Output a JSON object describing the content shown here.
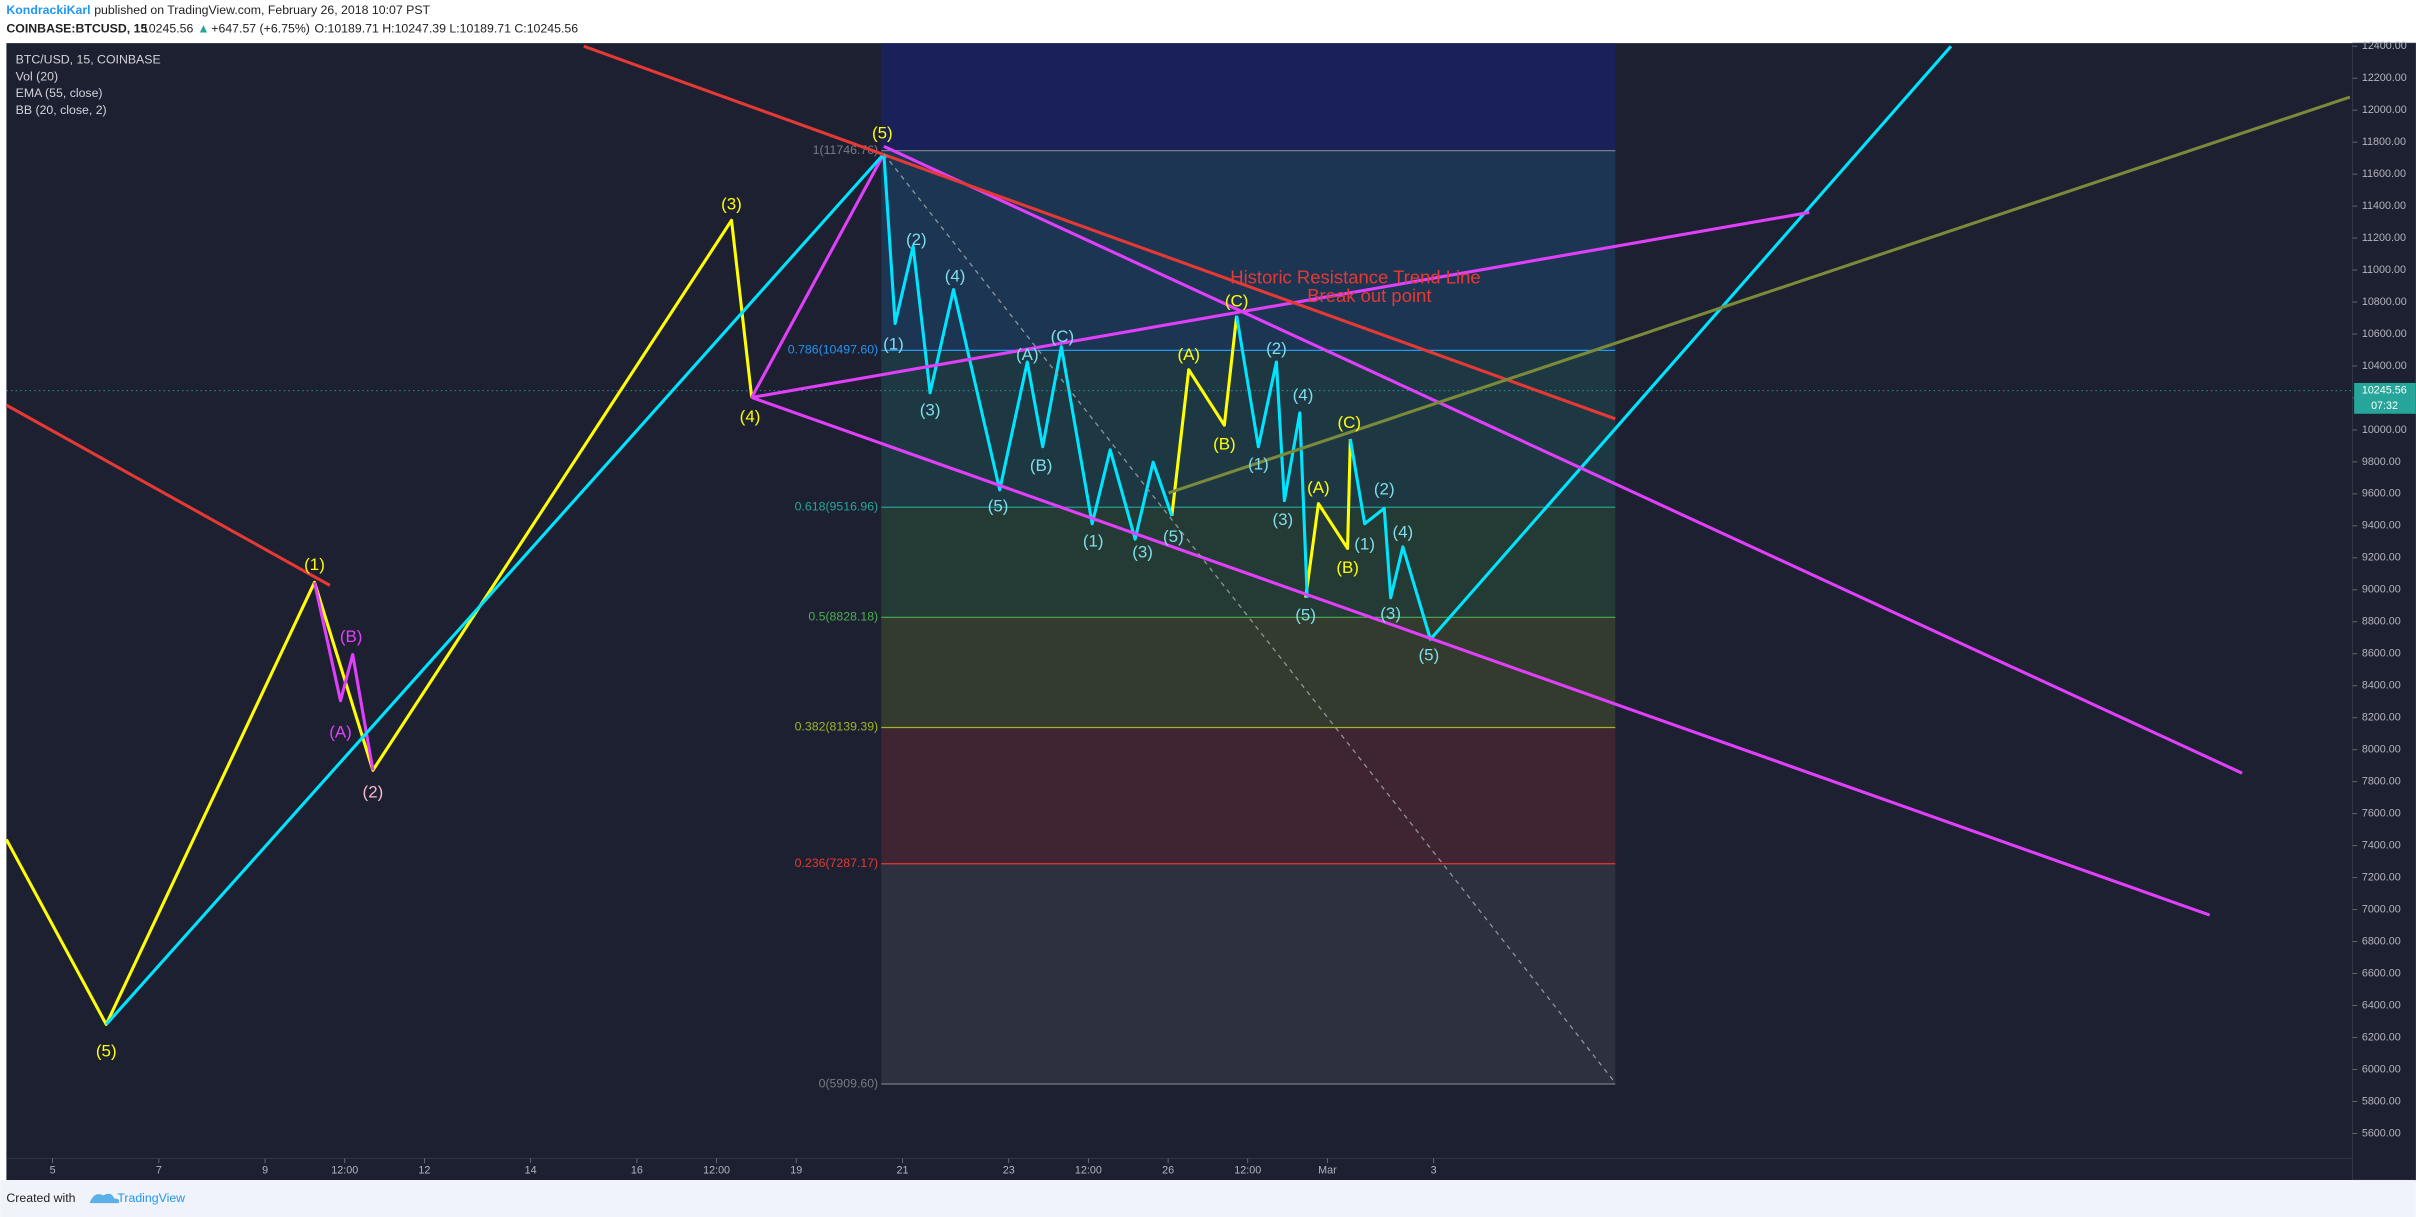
{
  "header": {
    "author": "KondrackiKarl",
    "published": "published on TradingView.com, February 26, 2018 10:07 PST",
    "symbol": "COINBASE:BTCUSD, 15",
    "price": "10245.56",
    "arrow": "▲",
    "change": "+647.57 (+6.75%)",
    "ohlc": "O:10189.71 H:10247.39 L:10189.71 C:10245.56"
  },
  "legend": [
    "BTC/USD, 15, COINBASE",
    "Vol (20)",
    "EMA (55, close)",
    "BB (20, close, 2)"
  ],
  "footer": {
    "created": "Created with",
    "brand": "TradingView"
  },
  "chart_data": {
    "type": "line",
    "xlim": [
      -0.87,
      43.3
    ],
    "ylim": [
      5444,
      12419
    ],
    "xticks": [
      {
        "value": 0,
        "label": "5"
      },
      {
        "value": 2,
        "label": "7"
      },
      {
        "value": 4,
        "label": "9"
      },
      {
        "value": 5.5,
        "label": "12:00"
      },
      {
        "value": 7,
        "label": "12"
      },
      {
        "value": 9,
        "label": "14"
      },
      {
        "value": 11,
        "label": "16"
      },
      {
        "value": 12.5,
        "label": "12:00"
      },
      {
        "value": 14,
        "label": "19"
      },
      {
        "value": 16,
        "label": "21"
      },
      {
        "value": 18,
        "label": "23"
      },
      {
        "value": 19.5,
        "label": "12:00"
      },
      {
        "value": 21,
        "label": "26"
      },
      {
        "value": 22.5,
        "label": "12:00"
      },
      {
        "value": 24,
        "label": "Mar"
      },
      {
        "value": 26,
        "label": "3"
      }
    ],
    "yticks": [
      {
        "value": 5600,
        "label": "5600.00"
      },
      {
        "value": 5800,
        "label": "5800.00"
      },
      {
        "value": 6000,
        "label": "6000.00"
      },
      {
        "value": 6200,
        "label": "6200.00"
      },
      {
        "value": 6400,
        "label": "6400.00"
      },
      {
        "value": 6600,
        "label": "6600.00"
      },
      {
        "value": 6800,
        "label": "6800.00"
      },
      {
        "value": 7000,
        "label": "7000.00"
      },
      {
        "value": 7200,
        "label": "7200.00"
      },
      {
        "value": 7400,
        "label": "7400.00"
      },
      {
        "value": 7600,
        "label": "7600.00"
      },
      {
        "value": 7800,
        "label": "7800.00"
      },
      {
        "value": 8000,
        "label": "8000.00"
      },
      {
        "value": 8200,
        "label": "8200.00"
      },
      {
        "value": 8400,
        "label": "8400.00"
      },
      {
        "value": 8600,
        "label": "8600.00"
      },
      {
        "value": 8800,
        "label": "8800.00"
      },
      {
        "value": 9000,
        "label": "9000.00"
      },
      {
        "value": 9200,
        "label": "9200.00"
      },
      {
        "value": 9400,
        "label": "9400.00"
      },
      {
        "value": 9600,
        "label": "9600.00"
      },
      {
        "value": 9800,
        "label": "9800.00"
      },
      {
        "value": 10000,
        "label": "10000.00"
      },
      {
        "value": 10200,
        "label": "10200.00"
      },
      {
        "value": 10400,
        "label": "10400.00"
      },
      {
        "value": 10600,
        "label": "10600.00"
      },
      {
        "value": 10800,
        "label": "10800.00"
      },
      {
        "value": 11000,
        "label": "11000.00"
      },
      {
        "value": 11200,
        "label": "11200.00"
      },
      {
        "value": 11400,
        "label": "11400.00"
      },
      {
        "value": 11600,
        "label": "11600.00"
      },
      {
        "value": 11800,
        "label": "11800.00"
      },
      {
        "value": 12000,
        "label": "12000.00"
      },
      {
        "value": 12200,
        "label": "12200.00"
      },
      {
        "value": 12400,
        "label": "12400.00"
      }
    ],
    "last_price": {
      "value": 10245.56,
      "label": "10245.56",
      "countdown": "07:32",
      "color": "#26a69a"
    },
    "fib": {
      "x": [
        15.6,
        29.42
      ],
      "top_color": "#1a237e",
      "levels": [
        {
          "price": 11746.76,
          "label": "1(11746.76)",
          "color": "#787b86"
        },
        {
          "price": 10497.6,
          "label": "0.786(10497.60)",
          "color": "#2196f3"
        },
        {
          "price": 9516.96,
          "label": "0.618(9516.96)",
          "color": "#26a69a"
        },
        {
          "price": 8828.18,
          "label": "0.5(8828.18)",
          "color": "#4caf50"
        },
        {
          "price": 8139.39,
          "label": "0.382(8139.39)",
          "color": "#9cb624"
        },
        {
          "price": 7287.17,
          "label": "0.236(7287.17)",
          "color": "#e53935"
        },
        {
          "price": 5909.6,
          "label": "0(5909.60)",
          "color": "#787b86"
        }
      ]
    },
    "series": [
      {
        "color": "#ffff00",
        "x": [
          -0.87,
          1.01,
          4.93,
          6.03,
          12.78,
          13.16
        ],
        "values": [
          7439,
          6282,
          9047,
          7872,
          11311,
          10203
        ]
      },
      {
        "color": "#ffff00",
        "x": [
          21.07,
          21.39,
          22.06,
          22.29,
          null,
          23.59,
          23.83,
          24.38,
          24.43
        ],
        "values": [
          9462,
          10377,
          10030,
          10714,
          null,
          8951,
          9539,
          9259,
          9943
        ]
      },
      {
        "color": "#e040fb",
        "x": [
          4.93,
          5.42,
          5.65,
          6.03,
          null,
          13.16,
          15.65
        ],
        "values": [
          9047,
          8306,
          8595,
          7872,
          null,
          10203,
          11726
        ]
      },
      {
        "color": "#00e5ff",
        "x": [
          1.01,
          15.65
        ],
        "values": [
          6282,
          11726
        ]
      },
      {
        "color": "#00e5ff",
        "x": [
          15.65,
          15.86,
          16.2,
          16.52,
          16.96,
          17.83,
          18.35,
          18.64,
          18.99,
          19.57,
          19.91,
          20.38,
          20.72,
          21.07
        ],
        "values": [
          11726,
          10666,
          11148,
          10232,
          10878,
          9625,
          10425,
          9895,
          10521,
          9413,
          9876,
          9317,
          9799,
          9462
        ]
      },
      {
        "color": "#00e5ff",
        "x": [
          22.29,
          22.7,
          23.04,
          23.19,
          23.48,
          23.62,
          null,
          24.43,
          24.7,
          25.07,
          25.19,
          25.42,
          25.94,
          35.74
        ],
        "values": [
          10714,
          9895,
          10425,
          9558,
          10107,
          8951,
          null,
          9943,
          9413,
          9510,
          8951,
          9269,
          8691,
          12400
        ]
      },
      {
        "color": "#e040fb",
        "x": [
          15.65,
          41.22
        ],
        "values": [
          11774,
          7853
        ]
      },
      {
        "color": "#e040fb",
        "x": [
          13.16,
          40.61
        ],
        "values": [
          10203,
          6966
        ]
      },
      {
        "color": "#e040fb",
        "x": [
          13.16,
          33.07
        ],
        "values": [
          10203,
          11360
        ]
      },
      {
        "color": "#e53935",
        "x": [
          -0.87,
          5.22,
          null,
          10.0,
          29.42
        ],
        "values": [
          10155,
          9028,
          null,
          12400,
          10069
        ]
      },
      {
        "color": "#7b8a3a",
        "x": [
          21.01,
          43.25
        ],
        "values": [
          9606,
          12082
        ]
      },
      {
        "color": "#9598a1",
        "style": "dashed",
        "x": [
          15.65,
          29.42
        ],
        "values": [
          11726,
          5916
        ]
      }
    ],
    "annotations": [
      {
        "text": "(5)",
        "x": 1.01,
        "y": 6109,
        "color": "#ffff00"
      },
      {
        "text": "(1)",
        "x": 4.93,
        "y": 9153,
        "color": "#ffff00"
      },
      {
        "text": "(B)",
        "x": 5.62,
        "y": 8701,
        "color": "#e040fb"
      },
      {
        "text": "(A)",
        "x": 5.42,
        "y": 8103,
        "color": "#e040fb"
      },
      {
        "text": "(2)",
        "x": 6.03,
        "y": 7728,
        "color": "#f8bbd0"
      },
      {
        "text": "(3)",
        "x": 12.78,
        "y": 11408,
        "color": "#ffff00"
      },
      {
        "text": "(4)",
        "x": 13.13,
        "y": 10078,
        "color": "#ffff00"
      },
      {
        "text": "(5)",
        "x": 15.62,
        "y": 11851,
        "color": "#ffff00"
      },
      {
        "text": "(1)",
        "x": 15.83,
        "y": 10531,
        "color": "#80deea"
      },
      {
        "text": "(2)",
        "x": 16.26,
        "y": 11186,
        "color": "#80deea"
      },
      {
        "text": "(3)",
        "x": 16.52,
        "y": 10117,
        "color": "#80deea"
      },
      {
        "text": "(4)",
        "x": 16.99,
        "y": 10955,
        "color": "#80deea"
      },
      {
        "text": "(5)",
        "x": 17.8,
        "y": 9519,
        "color": "#80deea"
      },
      {
        "text": "(A)",
        "x": 18.35,
        "y": 10464,
        "color": "#80deea"
      },
      {
        "text": "(B)",
        "x": 18.61,
        "y": 9770,
        "color": "#80deea"
      },
      {
        "text": "(C)",
        "x": 19.01,
        "y": 10579,
        "color": "#80deea"
      },
      {
        "text": "(1)",
        "x": 19.59,
        "y": 9298,
        "color": "#80deea"
      },
      {
        "text": "(3)",
        "x": 20.52,
        "y": 9230,
        "color": "#80deea"
      },
      {
        "text": "(5)",
        "x": 21.1,
        "y": 9327,
        "color": "#80deea"
      },
      {
        "text": "(A)",
        "x": 21.39,
        "y": 10464,
        "color": "#ffff00"
      },
      {
        "text": "(B)",
        "x": 22.06,
        "y": 9905,
        "color": "#ffff00"
      },
      {
        "text": "(C)",
        "x": 22.29,
        "y": 10801,
        "color": "#ffff00"
      },
      {
        "text": "(1)",
        "x": 22.7,
        "y": 9780,
        "color": "#80deea"
      },
      {
        "text": "(2)",
        "x": 23.04,
        "y": 10502,
        "color": "#80deea"
      },
      {
        "text": "(3)",
        "x": 23.16,
        "y": 9433,
        "color": "#80deea"
      },
      {
        "text": "(4)",
        "x": 23.54,
        "y": 10213,
        "color": "#80deea"
      },
      {
        "text": "(5)",
        "x": 23.59,
        "y": 8835,
        "color": "#80deea"
      },
      {
        "text": "(A)",
        "x": 23.83,
        "y": 9635,
        "color": "#ffff00"
      },
      {
        "text": "(C)",
        "x": 24.41,
        "y": 10040,
        "color": "#ffff00"
      },
      {
        "text": "(B)",
        "x": 24.38,
        "y": 9134,
        "color": "#ffff00"
      },
      {
        "text": "(1)",
        "x": 24.7,
        "y": 9279,
        "color": "#80deea"
      },
      {
        "text": "(2)",
        "x": 25.07,
        "y": 9625,
        "color": "#80deea"
      },
      {
        "text": "(4)",
        "x": 25.42,
        "y": 9356,
        "color": "#80deea"
      },
      {
        "text": "(3)",
        "x": 25.19,
        "y": 8845,
        "color": "#80deea"
      },
      {
        "text": "(5)",
        "x": 25.91,
        "y": 8585,
        "color": "#80deea"
      },
      {
        "text": "Historic Resistance Trend Line",
        "x": 22.17,
        "y": 10945,
        "color": "#e53935"
      },
      {
        "text": "Break out point",
        "x": 23.62,
        "y": 10830,
        "color": "#e53935"
      }
    ]
  }
}
